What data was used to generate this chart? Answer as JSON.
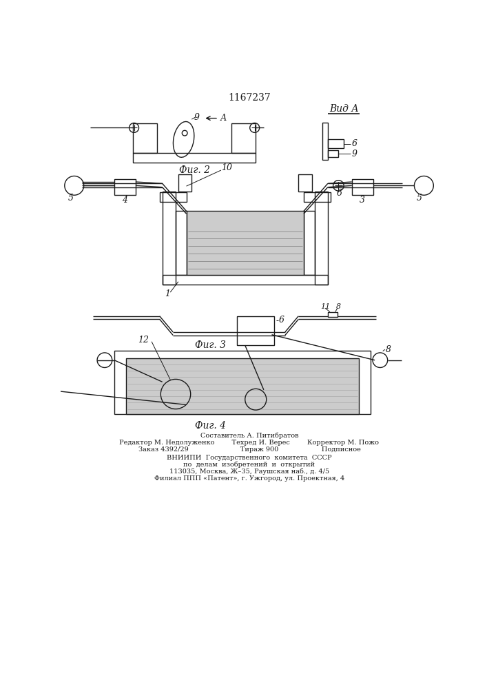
{
  "title_number": "1167237",
  "vid_a_label": "Вид А",
  "fig2_label": "Фиг. 2",
  "fig3_label": "Фиг. 3",
  "fig4_label": "Фиг. 4",
  "bg_color": "#ffffff",
  "line_color": "#1a1a1a",
  "fill_gray": "#cccccc",
  "footer_line0": "Составитель А. Питибратов",
  "footer_line1": "Редактор М. Недолуженко        Техред И. Верес        Корректор М. Пожо",
  "footer_line2": "Заказ 4392/29                        Тираж 900                    Подписное",
  "footer_line3": "ВНИИПИ  Государственного  комитета  СССР",
  "footer_line4": "по  делам  изобретений  и  открытий",
  "footer_line5": "113035, Москва, Ж–35, Раушская наб., д. 4/5",
  "footer_line6": "Филиал ППП «Патент», г. Ужгород, ул. Проектная, 4"
}
